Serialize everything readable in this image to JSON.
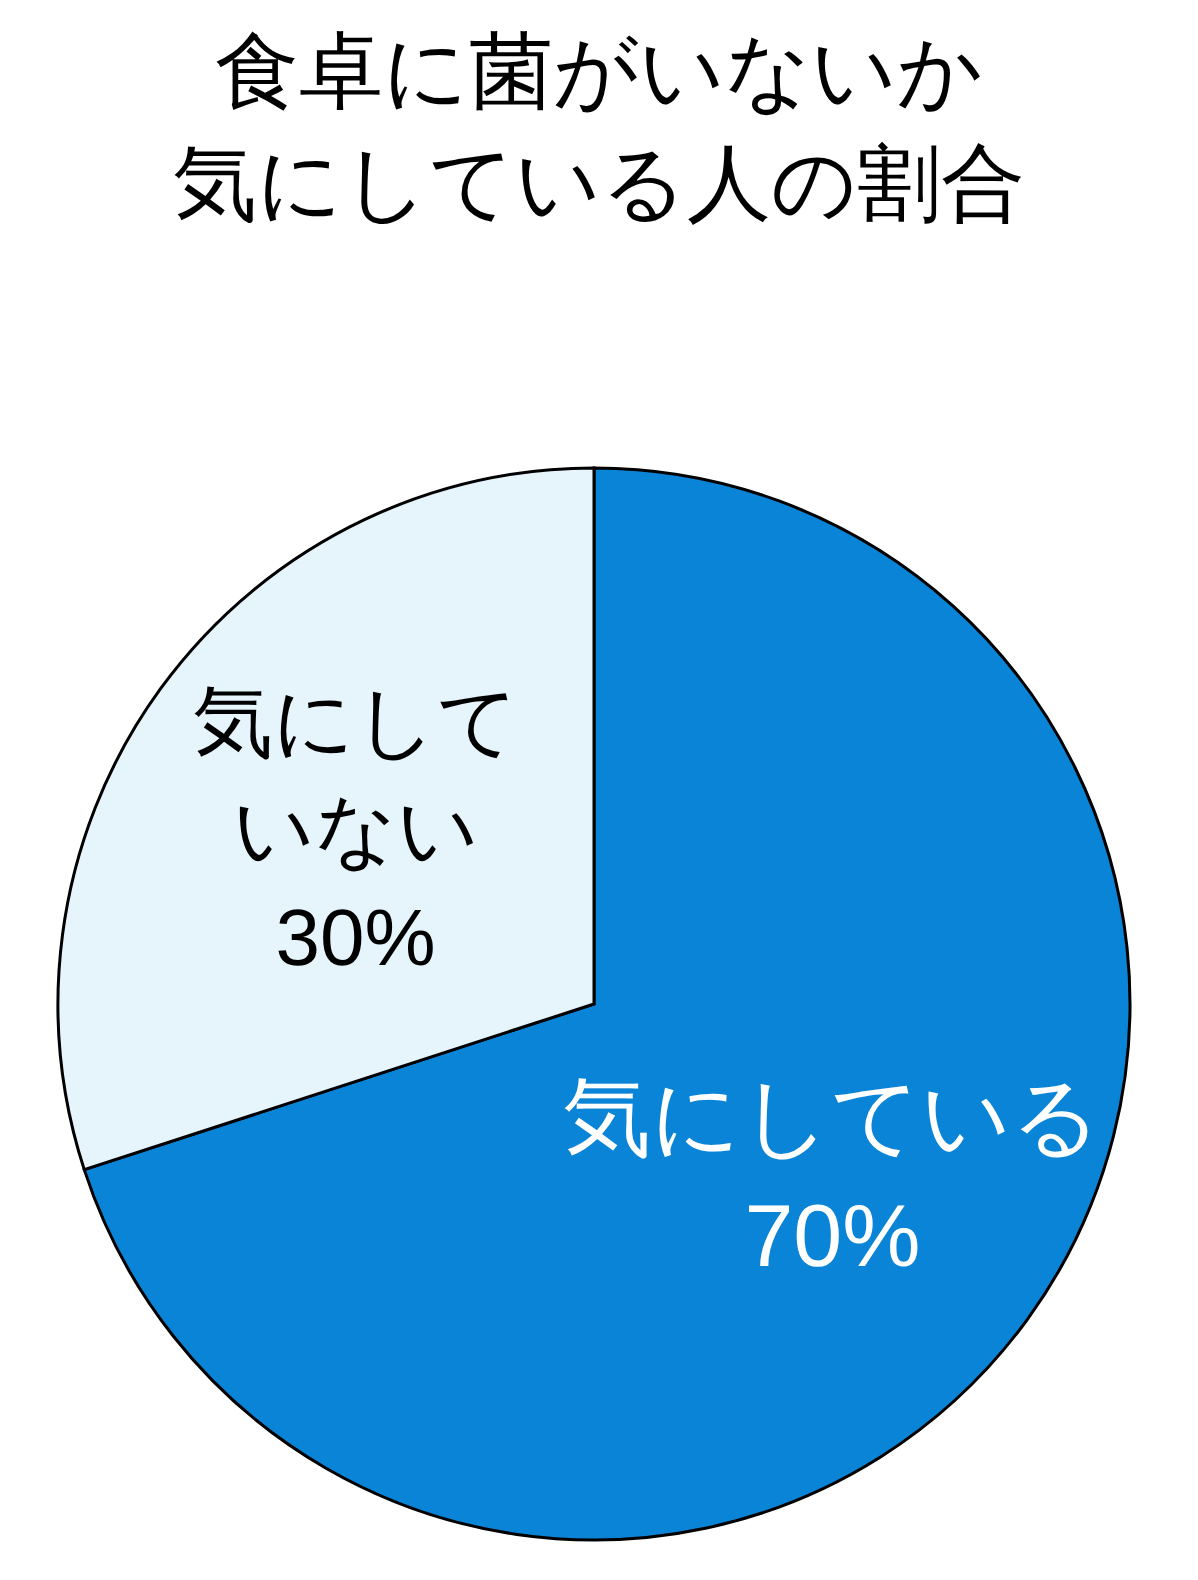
{
  "chart_data": {
    "type": "pie",
    "title": "食卓に菌がいないか",
    "subtitle": "気にしている人の割合",
    "value_labels": [
      "70%",
      "30%"
    ],
    "categories": [
      "気にしている",
      "気にしていない"
    ],
    "values": [
      70,
      30
    ],
    "colors": [
      "#0a84d6",
      "#e6f4fc"
    ]
  }
}
